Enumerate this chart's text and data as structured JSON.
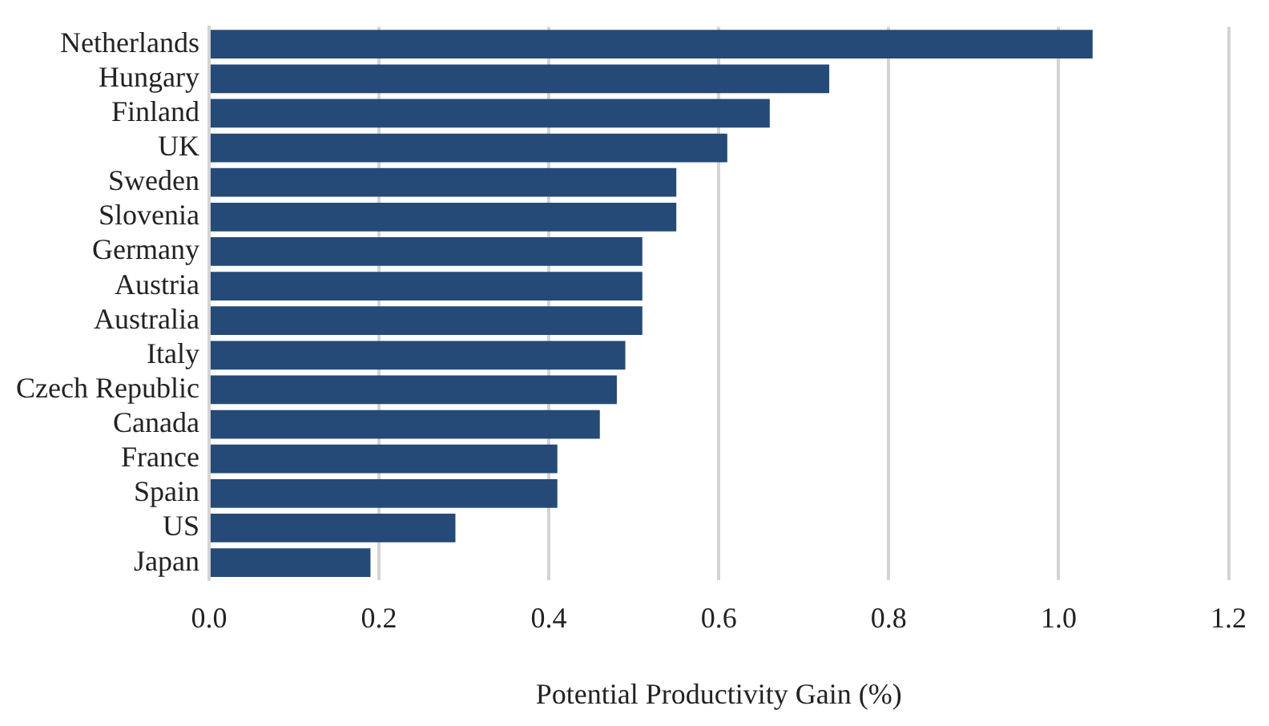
{
  "chart_data": {
    "type": "bar",
    "orientation": "horizontal",
    "xlabel": "Potential Productivity Gain (%)",
    "categories": [
      "Netherlands",
      "Hungary",
      "Finland",
      "UK",
      "Sweden",
      "Slovenia",
      "Germany",
      "Austria",
      "Australia",
      "Italy",
      "Czech Republic",
      "Canada",
      "France",
      "Spain",
      "US",
      "Japan"
    ],
    "values": [
      1.04,
      0.73,
      0.66,
      0.61,
      0.55,
      0.55,
      0.51,
      0.51,
      0.51,
      0.49,
      0.48,
      0.46,
      0.41,
      0.41,
      0.29,
      0.19
    ],
    "color": "#254a78",
    "xlim": [
      0,
      1.2
    ],
    "xticks": [
      {
        "value": 0,
        "label": "0.0"
      },
      {
        "value": 0.2,
        "label": "0.2"
      },
      {
        "value": 0.4,
        "label": "0.4"
      },
      {
        "value": 0.6,
        "label": "0.6"
      },
      {
        "value": 0.8,
        "label": "0.8"
      },
      {
        "value": 1,
        "label": "1.0"
      },
      {
        "value": 1.2,
        "label": "1.2"
      }
    ],
    "grid": "x",
    "legend": false
  }
}
